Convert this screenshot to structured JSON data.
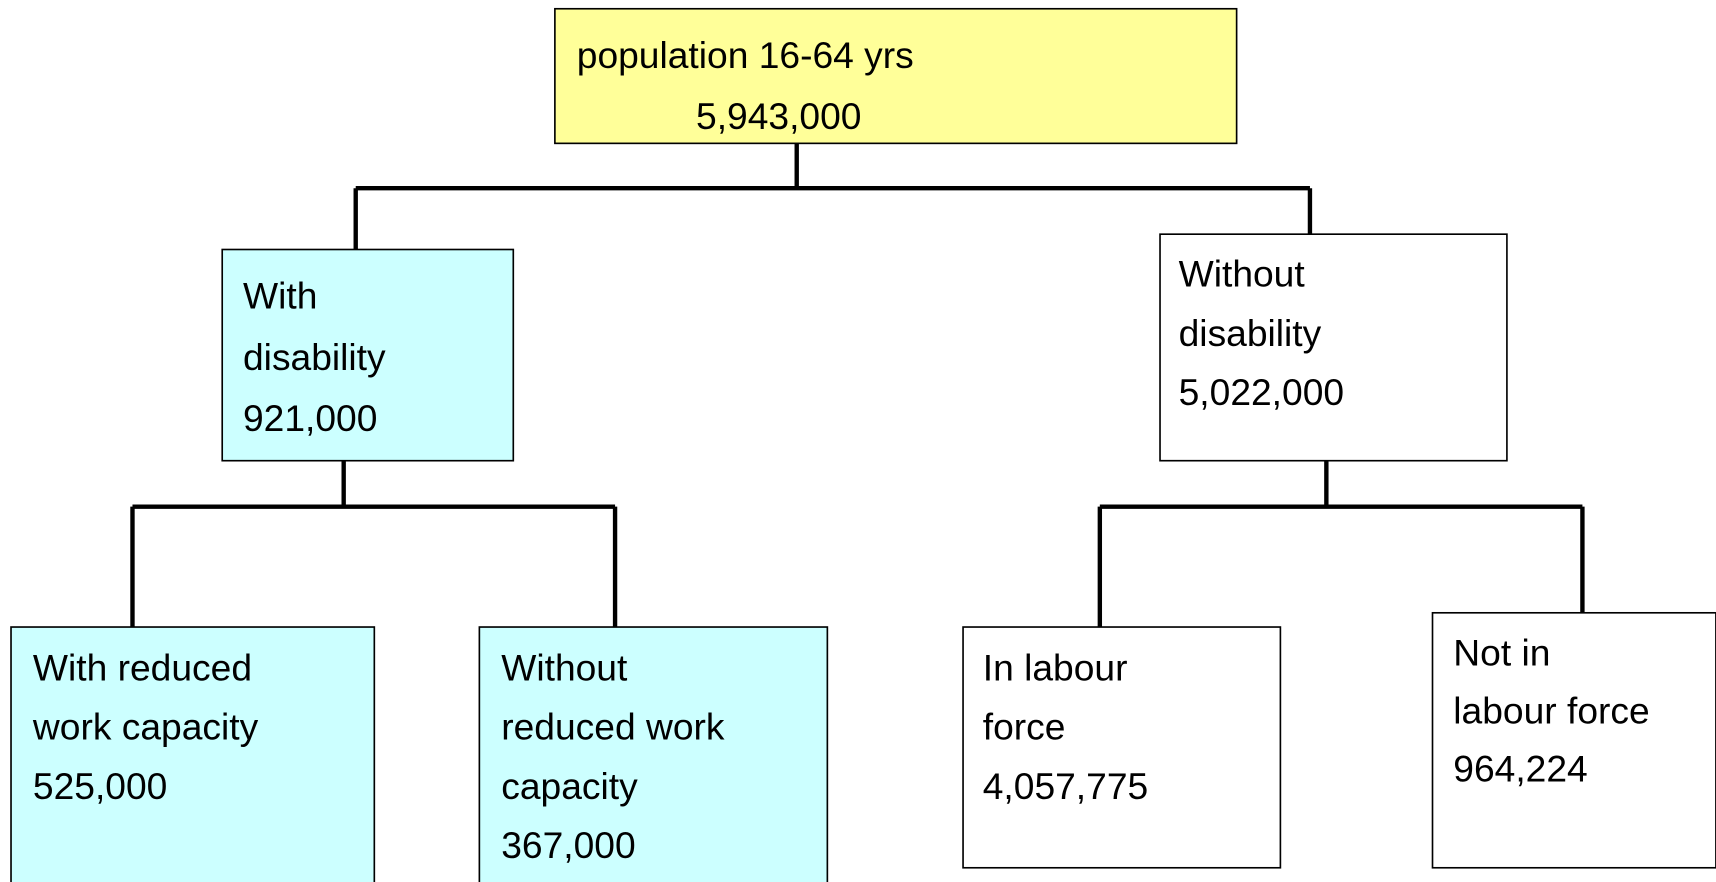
{
  "nodes": [
    {
      "lines": [
        "population 16-64 yrs",
        "5,943,000"
      ]
    },
    {
      "lines": [
        "With",
        "disability",
        "921,000"
      ]
    },
    {
      "lines": [
        "Without",
        "disability",
        "5,022,000"
      ]
    },
    {
      "lines": [
        "With reduced",
        "work capacity",
        "525,000"
      ]
    },
    {
      "lines": [
        "Without",
        "reduced work",
        "capacity",
        "367,000"
      ]
    },
    {
      "lines": [
        "In labour",
        "force",
        "4,057,775"
      ]
    },
    {
      "lines": [
        "Not in",
        "labour force",
        "964,224"
      ]
    }
  ]
}
